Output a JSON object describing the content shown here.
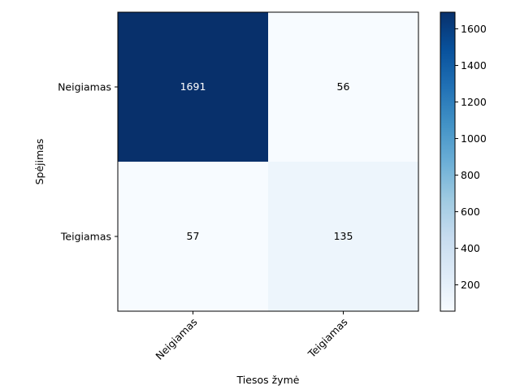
{
  "chart_data": {
    "type": "heatmap",
    "xlabel": "Tiesos žymė",
    "ylabel": "Spėjimas",
    "x_categories": [
      "Neigiamas",
      "Teigiamas"
    ],
    "y_categories": [
      "Neigiamas",
      "Teigiamas"
    ],
    "values": [
      [
        1691,
        56
      ],
      [
        57,
        135
      ]
    ],
    "colormap": "Blues",
    "colorbar": {
      "range": [
        56,
        1691
      ],
      "ticks": [
        "200",
        "400",
        "600",
        "800",
        "1000",
        "1200",
        "1400",
        "1600"
      ]
    },
    "grid": false
  }
}
